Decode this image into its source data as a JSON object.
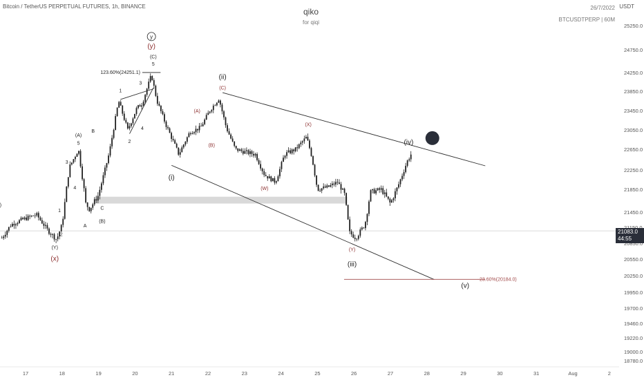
{
  "header": {
    "symbol": "Bitcoin / TetherUS PERPETUAL FUTURES, 1h, BINANCE",
    "author": "qiko",
    "subtitle": "for qiqi",
    "date": "26/7/2022",
    "ticker": "BTCUSDTPERP | 60M",
    "currency": "USDT"
  },
  "price_tag": {
    "value": "21083.0",
    "countdown": "44:55"
  },
  "colors": {
    "candle": "#1f1f1f",
    "wave_red": "#8b2e2e",
    "channel": "#2b2b2b",
    "zone": "#d9d9d9",
    "fib_line": "#a04848",
    "marker": "#2a2e39"
  },
  "chart_data": {
    "type": "candlestick",
    "y_axis_ticks": [
      25250,
      24750,
      24250,
      23850,
      23450,
      23050,
      22650,
      22250,
      21850,
      21450,
      21150,
      20850,
      20550,
      20250,
      19950,
      19700,
      19460,
      19220,
      19000,
      18780
    ],
    "y_axis_labels": [
      "25250.0",
      "24750.0",
      "24250.0",
      "23850.0",
      "23450.0",
      "23050.0",
      "22650.0",
      "22250.0",
      "21850.0",
      "21450.0",
      "21150.0",
      "20850.0",
      "20550.0",
      "20250.0",
      "19950.0",
      "19700.0",
      "19460.0",
      "19220.0",
      "19000.0",
      "18780.0"
    ],
    "x_axis_ticks": [
      17,
      18,
      19,
      20,
      21,
      22,
      23,
      24,
      25,
      26,
      27,
      28,
      29,
      30,
      31,
      32,
      33
    ],
    "x_axis_labels": [
      "17",
      "18",
      "19",
      "20",
      "21",
      "22",
      "23",
      "24",
      "25",
      "26",
      "27",
      "28",
      "29",
      "30",
      "31",
      "Aug",
      "2"
    ],
    "current_price": 21083.0,
    "anchor_points": [
      [
        16.35,
        20950
      ],
      [
        16.6,
        21200
      ],
      [
        16.9,
        21300
      ],
      [
        17.3,
        21400
      ],
      [
        17.6,
        21100
      ],
      [
        17.85,
        20920
      ],
      [
        18.0,
        21200
      ],
      [
        18.2,
        22300
      ],
      [
        18.45,
        22650
      ],
      [
        18.65,
        21600
      ],
      [
        18.75,
        21500
      ],
      [
        19.0,
        21750
      ],
      [
        19.3,
        22600
      ],
      [
        19.55,
        23650
      ],
      [
        19.8,
        23050
      ],
      [
        20.05,
        23500
      ],
      [
        20.2,
        23600
      ],
      [
        20.45,
        24200
      ],
      [
        20.6,
        23650
      ],
      [
        20.85,
        23150
      ],
      [
        21.2,
        22550
      ],
      [
        21.5,
        23000
      ],
      [
        21.8,
        23100
      ],
      [
        22.05,
        23450
      ],
      [
        22.3,
        23700
      ],
      [
        22.5,
        23100
      ],
      [
        22.75,
        22650
      ],
      [
        23.0,
        22600
      ],
      [
        23.3,
        22550
      ],
      [
        23.55,
        22150
      ],
      [
        23.85,
        22000
      ],
      [
        24.1,
        22550
      ],
      [
        24.4,
        22650
      ],
      [
        24.7,
        22900
      ],
      [
        24.85,
        22500
      ],
      [
        25.0,
        21850
      ],
      [
        25.3,
        21900
      ],
      [
        25.55,
        22000
      ],
      [
        25.75,
        21750
      ],
      [
        25.88,
        21050
      ],
      [
        26.05,
        20950
      ],
      [
        26.3,
        21200
      ],
      [
        26.45,
        21800
      ],
      [
        26.75,
        21850
      ],
      [
        27.0,
        21600
      ],
      [
        27.2,
        21900
      ],
      [
        27.45,
        22400
      ],
      [
        27.6,
        22600
      ]
    ],
    "demand_zone": {
      "from_x": 18.9,
      "to_x": 25.82,
      "y_low": 21600,
      "y_high": 21720
    },
    "channel_upper": [
      [
        22.4,
        23820
      ],
      [
        29.6,
        22330
      ]
    ],
    "channel_lower": [
      [
        21.0,
        22340
      ],
      [
        28.2,
        20180
      ]
    ],
    "fib_target": {
      "label": "−23.60%(20184.0)",
      "y": 20184,
      "from_x": 25.73,
      "to_x": 29.6
    },
    "fib_peak": {
      "label": "123.60%(24251.1)",
      "y": 24251,
      "from_x": 20.2,
      "to_x": 20.7
    },
    "projection_marker": {
      "x": 28.15,
      "y": 22880
    },
    "wave_labels": [
      {
        "t": "(X)",
        "x": 16.25,
        "y": 21550,
        "c": "#1f1f1f",
        "s": 7
      },
      {
        "t": "(Y)",
        "x": 17.8,
        "y": 20740,
        "c": "#1f1f1f",
        "s": 7
      },
      {
        "t": "(x)",
        "x": 17.8,
        "y": 20520,
        "c": "#8b2e2e",
        "s": 10
      },
      {
        "t": "2",
        "x": 17.98,
        "y": 20990,
        "c": "#1f1f1f",
        "s": 7
      },
      {
        "t": "1",
        "x": 17.93,
        "y": 21450,
        "c": "#1f1f1f",
        "s": 7
      },
      {
        "t": "3",
        "x": 18.13,
        "y": 22370,
        "c": "#1f1f1f",
        "s": 7
      },
      {
        "t": "4",
        "x": 18.35,
        "y": 21850,
        "c": "#1f1f1f",
        "s": 7
      },
      {
        "t": "(A)",
        "x": 18.45,
        "y": 22910,
        "c": "#1f1f1f",
        "s": 7
      },
      {
        "t": "5",
        "x": 18.45,
        "y": 22740,
        "c": "#1f1f1f",
        "s": 7
      },
      {
        "t": "A",
        "x": 18.63,
        "y": 21150,
        "c": "#1f1f1f",
        "s": 7
      },
      {
        "t": "B",
        "x": 18.85,
        "y": 22990,
        "c": "#1f1f1f",
        "s": 7
      },
      {
        "t": "C",
        "x": 19.1,
        "y": 21490,
        "c": "#1f1f1f",
        "s": 7
      },
      {
        "t": "(B)",
        "x": 19.1,
        "y": 21240,
        "c": "#1f1f1f",
        "s": 7
      },
      {
        "t": "1",
        "x": 19.6,
        "y": 23830,
        "c": "#1f1f1f",
        "s": 7
      },
      {
        "t": "2",
        "x": 19.85,
        "y": 22780,
        "c": "#1f1f1f",
        "s": 7
      },
      {
        "t": "3",
        "x": 20.15,
        "y": 23990,
        "c": "#1f1f1f",
        "s": 7
      },
      {
        "t": "4",
        "x": 20.2,
        "y": 23050,
        "c": "#1f1f1f",
        "s": 7
      },
      {
        "t": "5",
        "x": 20.5,
        "y": 24400,
        "c": "#1f1f1f",
        "s": 7
      },
      {
        "t": "(C)",
        "x": 20.5,
        "y": 24560,
        "c": "#1f1f1f",
        "s": 7
      },
      {
        "t": "(y)",
        "x": 20.45,
        "y": 24780,
        "c": "#8b2e2e",
        "s": 10
      },
      {
        "t": "(i)",
        "x": 21.0,
        "y": 22050,
        "c": "#1f1f1f",
        "s": 10
      },
      {
        "t": "(A)",
        "x": 21.7,
        "y": 23410,
        "c": "#8b2e2e",
        "s": 7
      },
      {
        "t": "(B)",
        "x": 22.1,
        "y": 22700,
        "c": "#8b2e2e",
        "s": 7
      },
      {
        "t": "(C)",
        "x": 22.4,
        "y": 23890,
        "c": "#8b2e2e",
        "s": 7
      },
      {
        "t": "(ii)",
        "x": 22.4,
        "y": 24110,
        "c": "#1f1f1f",
        "s": 10
      },
      {
        "t": "(W)",
        "x": 23.55,
        "y": 21840,
        "c": "#8b2e2e",
        "s": 7
      },
      {
        "t": "(X)",
        "x": 24.75,
        "y": 23130,
        "c": "#8b2e2e",
        "s": 7
      },
      {
        "t": "(Y)",
        "x": 25.95,
        "y": 20700,
        "c": "#8b2e2e",
        "s": 7
      },
      {
        "t": "(iii)",
        "x": 25.95,
        "y": 20420,
        "c": "#1f1f1f",
        "s": 10
      },
      {
        "t": "(iv)",
        "x": 27.5,
        "y": 22750,
        "c": "#1f1f1f",
        "s": 10
      },
      {
        "t": "(v)",
        "x": 29.05,
        "y": 20030,
        "c": "#1f1f1f",
        "s": 10
      }
    ],
    "circled_labels": [
      {
        "t": "y",
        "x": 20.45,
        "y": 24980
      }
    ],
    "impulse_lines": [
      [
        [
          19.85,
          22970
        ],
        [
          20.5,
          23920
        ]
      ],
      [
        [
          19.6,
          23680
        ],
        [
          20.5,
          23900
        ]
      ]
    ]
  }
}
